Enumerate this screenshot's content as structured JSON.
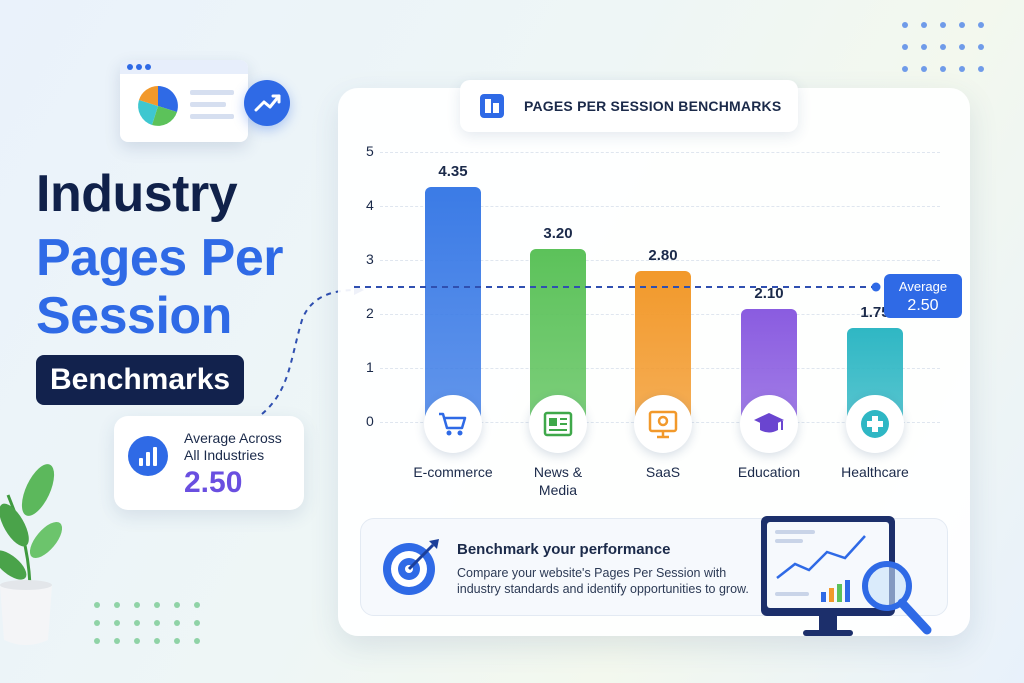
{
  "hero": {
    "line1": "Industry",
    "line2": "Pages Per",
    "line3": "Session",
    "pill": "Benchmarks"
  },
  "average_card": {
    "label": "Average Across All Industries",
    "value": "2.50"
  },
  "chart_title": "PAGES PER SESSION BENCHMARKS",
  "average_badge": {
    "label": "Average",
    "value": "2.50"
  },
  "chart_data": {
    "type": "bar",
    "title": "PAGES PER SESSION BENCHMARKS",
    "categories": [
      "E-commerce",
      "News & Media",
      "SaaS",
      "Education",
      "Healthcare"
    ],
    "values": [
      4.35,
      3.2,
      2.8,
      2.1,
      1.75
    ],
    "value_labels": [
      "4.35",
      "3.20",
      "2.80",
      "2.10",
      "1.75"
    ],
    "yticks": [
      "0",
      "1",
      "2",
      "3",
      "4",
      "5"
    ],
    "ylim": [
      0,
      5
    ],
    "reference_line": {
      "label": "Average",
      "value": 2.5
    },
    "grid": true,
    "colors": [
      "#3b7be6",
      "#5cc25a",
      "#f2992b",
      "#8a5ce0",
      "#2fb7c4"
    ],
    "icons": [
      "cart-icon",
      "newspaper-icon",
      "monitor-gear-icon",
      "graduation-cap-icon",
      "medical-cross-icon"
    ]
  },
  "benchmark_panel": {
    "heading": "Benchmark your performance",
    "description": "Compare your website's Pages Per Session with industry standards and identify opportunities to grow."
  },
  "colors": {
    "accent": "#2f6ae6",
    "navy": "#12224d",
    "purple_value": "#6a4fe0"
  }
}
